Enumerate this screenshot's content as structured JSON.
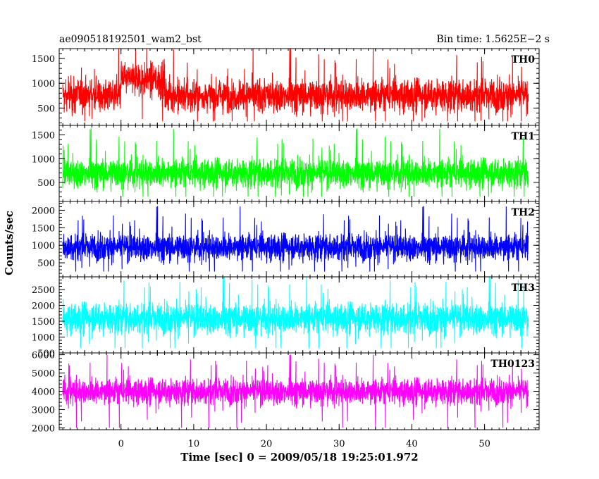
{
  "header": {
    "title": "ae090518192501_wam2_bst",
    "bin_time": "Bin time: 1.5625E−2 s"
  },
  "colors": {
    "TH0": "#ff0000",
    "TH1": "#00ff00",
    "TH2": "#0000ff",
    "TH3": "#00ffff",
    "TH0123": "#ff00ff"
  },
  "chart_data": {
    "type": "line",
    "title": "ae090518192501_wam2_bst",
    "subtitle": "Bin time: 1.5625E−2 s",
    "xlabel": "Time [sec] 0 = 2009/05/18 19:25:01.972",
    "ylabel": "Counts/sec",
    "xlim": [
      -8.5,
      57.5
    ],
    "x_ticks": [
      0,
      10,
      20,
      30,
      40,
      50
    ],
    "x_tick_labels": [
      "0",
      "10",
      "20",
      "30",
      "40",
      "50"
    ],
    "data_x_range": [
      -8,
      56
    ],
    "panels": [
      {
        "name": "TH0",
        "ylim": [
          150,
          1700
        ],
        "y_ticks": [
          500,
          1000,
          1500
        ],
        "y_tick_labels": [
          "500",
          "1000",
          "1500"
        ],
        "mean": 760,
        "spread": 260,
        "min": 230,
        "max": 1700,
        "features": [
          {
            "x_from": 0,
            "x_to": 6,
            "mean": 1080
          }
        ]
      },
      {
        "name": "TH1",
        "ylim": [
          100,
          1700
        ],
        "y_ticks": [
          500,
          1000,
          1500
        ],
        "y_tick_labels": [
          "500",
          "1000",
          "1500"
        ],
        "mean": 700,
        "spread": 240,
        "min": 200,
        "max": 1650
      },
      {
        "name": "TH2",
        "ylim": [
          100,
          2250
        ],
        "y_ticks": [
          500,
          1000,
          1500,
          2000
        ],
        "y_tick_labels": [
          "500",
          "1000",
          "1500",
          "2000"
        ],
        "mean": 950,
        "spread": 300,
        "min": 250,
        "max": 2150
      },
      {
        "name": "TH3",
        "ylim": [
          500,
          2900
        ],
        "y_ticks": [
          500,
          1000,
          1500,
          2000,
          2500
        ],
        "y_tick_labels": [
          "500",
          "1000",
          "1500",
          "2000",
          "2500"
        ],
        "mean": 1600,
        "spread": 380,
        "min": 650,
        "max": 2900
      },
      {
        "name": "TH0123",
        "ylim": [
          1900,
          6100
        ],
        "y_ticks": [
          2000,
          3000,
          4000,
          5000,
          6000
        ],
        "y_tick_labels": [
          "2000",
          "3000",
          "4000",
          "5000",
          "6000"
        ],
        "mean": 4000,
        "spread": 560,
        "min": 2000,
        "max": 6000
      }
    ]
  }
}
